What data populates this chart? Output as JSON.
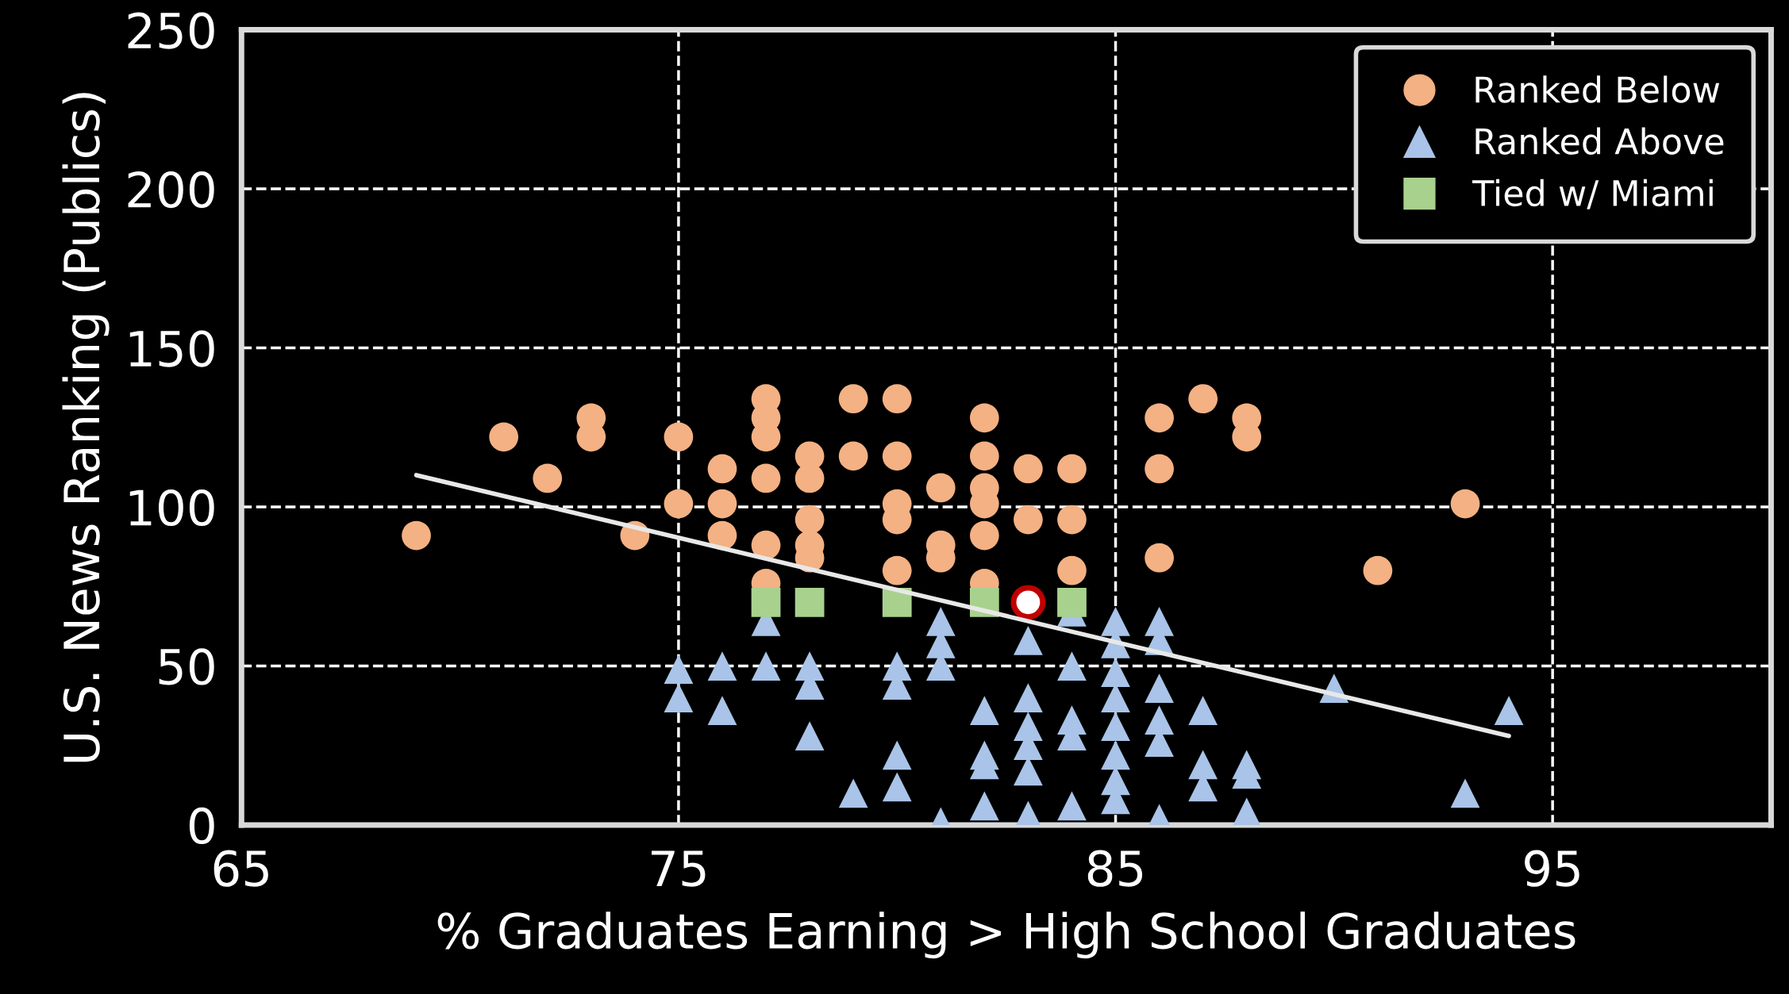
{
  "chart_data": {
    "type": "scatter",
    "xlabel": "% Graduates Earning > High School Graduates",
    "ylabel": "U.S. News Ranking (Publics)",
    "xlim": [
      65,
      100
    ],
    "xticks": [
      65,
      75,
      85,
      95
    ],
    "ylim": [
      0,
      250
    ],
    "yticks": [
      0,
      50,
      100,
      150,
      200,
      250
    ],
    "grid": true,
    "line_style": "dashed",
    "legend": "top right",
    "series": [
      {
        "name": "Ranked Below",
        "color": "#f4b183",
        "marker": "circle",
        "x": [
          69,
          71,
          72,
          73,
          73,
          74,
          75,
          75,
          76,
          76,
          76,
          77,
          77,
          77,
          77,
          77,
          77,
          78,
          78,
          78,
          78,
          78,
          79,
          79,
          80,
          80,
          80,
          80,
          80,
          81,
          81,
          81,
          82,
          82,
          82,
          82,
          82,
          82,
          83,
          83,
          84,
          84,
          84,
          86,
          86,
          86,
          87,
          88,
          88,
          91,
          93
        ],
        "values": [
          91,
          122,
          109,
          128,
          122,
          91,
          122,
          101,
          112,
          101,
          91,
          134,
          128,
          122,
          109,
          88,
          76,
          116,
          109,
          96,
          88,
          84,
          134,
          116,
          134,
          116,
          101,
          96,
          80,
          106,
          88,
          84,
          128,
          116,
          106,
          101,
          91,
          76,
          112,
          96,
          112,
          96,
          80,
          128,
          112,
          84,
          134,
          128,
          122,
          80,
          101
        ]
      },
      {
        "name": "Ranked Above",
        "color": "#a9c4e8",
        "marker": "triangle",
        "x": [
          77,
          75,
          75,
          76,
          76,
          77,
          78,
          78,
          78,
          79,
          80,
          80,
          80,
          80,
          81,
          81,
          81,
          81,
          82,
          82,
          82,
          82,
          83,
          83,
          83,
          83,
          83,
          83,
          84,
          84,
          84,
          84,
          84,
          85,
          85,
          85,
          85,
          85,
          85,
          85,
          85,
          86,
          86,
          86,
          86,
          86,
          86,
          87,
          87,
          87,
          88,
          88,
          88,
          90,
          93,
          94
        ],
        "values": [
          64,
          49,
          40,
          50,
          36,
          50,
          50,
          44,
          28,
          10,
          50,
          44,
          22,
          12,
          64,
          57,
          50,
          1,
          36,
          22,
          19,
          6,
          58,
          40,
          31,
          25,
          17,
          3,
          67,
          50,
          33,
          28,
          6,
          64,
          57,
          48,
          40,
          31,
          22,
          14,
          8,
          64,
          58,
          43,
          33,
          26,
          2,
          36,
          19,
          12,
          19,
          16,
          4,
          43,
          10,
          36
        ]
      },
      {
        "name": "Tied w/ Miami",
        "color": "#a9d18e",
        "marker": "square",
        "x": [
          77,
          78,
          80,
          82,
          84
        ],
        "values": [
          70,
          70,
          70,
          70,
          70
        ]
      },
      {
        "color": "#ffffff",
        "marker": "circle",
        "x": [
          83
        ],
        "values": [
          70
        ]
      },
      {
        "type": "line",
        "color": "#e8e8e8",
        "marker": "none",
        "line_style": "solid",
        "x": [
          69,
          94
        ],
        "values": [
          110,
          28
        ]
      }
    ]
  }
}
